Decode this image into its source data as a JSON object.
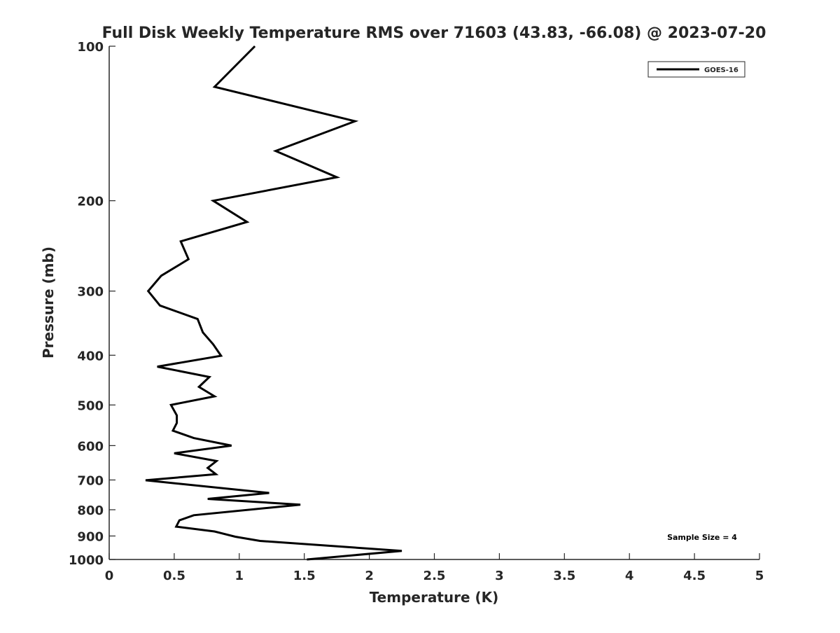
{
  "chart_data": {
    "type": "line",
    "title": "Full Disk Weekly Temperature RMS over 71603 (43.83, -66.08) @ 2023-07-20",
    "xlabel": "Temperature (K)",
    "ylabel": "Pressure (mb)",
    "xlim": [
      0,
      5
    ],
    "ylim": [
      100,
      1000
    ],
    "yscale": "log",
    "yreversed": true,
    "xticks": [
      "0",
      "0.5",
      "1",
      "1.5",
      "2",
      "2.5",
      "3",
      "3.5",
      "4",
      "4.5",
      "5"
    ],
    "yticks": [
      "100",
      "200",
      "300",
      "400",
      "500",
      "600",
      "700",
      "800",
      "900",
      "1000"
    ],
    "legend": {
      "position": "top-right",
      "entries": [
        "GOES-16"
      ]
    },
    "annotation": "Sample Size = 4",
    "series": [
      {
        "name": "GOES-16",
        "color": "#000000",
        "temperature": [
          1.12,
          0.81,
          1.89,
          1.28,
          1.75,
          0.8,
          1.06,
          0.55,
          0.61,
          0.4,
          0.3,
          0.39,
          0.68,
          0.72,
          0.8,
          0.86,
          0.37,
          0.77,
          0.69,
          0.81,
          0.475,
          0.52,
          0.52,
          0.49,
          0.65,
          0.94,
          0.5,
          0.825,
          0.757,
          0.82,
          0.28,
          1.23,
          0.757,
          1.47,
          0.65,
          0.54,
          0.515,
          0.81,
          0.97,
          1.16,
          2.25,
          1.52
        ],
        "pressure": [
          100,
          120,
          140,
          160,
          180,
          200,
          220,
          240,
          260,
          280,
          300,
          320,
          340,
          361,
          381,
          401,
          421,
          441,
          461,
          481,
          500,
          524,
          542,
          561,
          580,
          600,
          621,
          643,
          663,
          682,
          701,
          742,
          762,
          782,
          820,
          839,
          863,
          882,
          903,
          920,
          962,
          1000
        ]
      }
    ]
  }
}
